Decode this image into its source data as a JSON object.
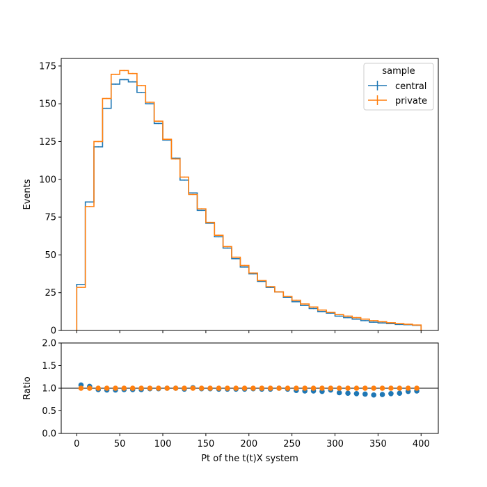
{
  "chart_data": {
    "type": "histogram",
    "x_bin_edges": [
      0,
      10,
      20,
      30,
      40,
      50,
      60,
      70,
      80,
      90,
      100,
      110,
      120,
      130,
      140,
      150,
      160,
      170,
      180,
      190,
      200,
      210,
      220,
      230,
      240,
      250,
      260,
      270,
      280,
      290,
      300,
      310,
      320,
      330,
      340,
      350,
      360,
      370,
      380,
      390,
      400
    ],
    "xlabel": "Pt of the t(t)X system",
    "xlim": [
      -18,
      420
    ],
    "xticks": [
      0,
      50,
      100,
      150,
      200,
      250,
      300,
      350,
      400
    ],
    "main": {
      "ylabel": "Events",
      "ylim": [
        0,
        180
      ],
      "yticks": [
        0,
        25,
        50,
        75,
        100,
        125,
        150,
        175
      ],
      "legend": {
        "title": "sample",
        "placement": "top-right"
      },
      "series": [
        {
          "name": "central",
          "color": "#1f77b4",
          "values": [
            30.5,
            85,
            121.5,
            147,
            163,
            166,
            164.5,
            157.5,
            150,
            137,
            126,
            114,
            99.5,
            91,
            79.5,
            71,
            62,
            54.5,
            47.5,
            42,
            37.5,
            32.5,
            28.5,
            25.5,
            22,
            19,
            16.5,
            14.5,
            12.5,
            11.5,
            9.5,
            8.5,
            7.5,
            6.5,
            5.5,
            5,
            4.5,
            4,
            3.8,
            3.4
          ]
        },
        {
          "name": "private",
          "color": "#ff7f0e",
          "values": [
            28.5,
            82,
            125,
            153.5,
            169.5,
            172,
            170,
            162,
            151,
            138.5,
            126.5,
            113.5,
            101.5,
            90,
            80.5,
            71.5,
            63,
            55.5,
            48.5,
            43,
            38,
            33,
            29,
            25.5,
            22.5,
            20,
            17.5,
            15.5,
            13.5,
            12,
            10.5,
            9.5,
            8.5,
            7.5,
            6.5,
            5.8,
            5.1,
            4.5,
            4.1,
            3.6
          ]
        }
      ]
    },
    "ratio": {
      "ylabel": "Ratio",
      "ylim": [
        0,
        2
      ],
      "yticks": [
        0.0,
        0.5,
        1.0,
        1.5,
        2.0
      ],
      "reference_line": 1.0,
      "series": [
        {
          "name": "central",
          "color": "#1f77b4",
          "values": [
            1.07,
            1.04,
            0.97,
            0.96,
            0.96,
            0.97,
            0.97,
            0.97,
            0.99,
            0.99,
            1.0,
            1.0,
            0.98,
            1.01,
            0.99,
            0.99,
            0.98,
            0.98,
            0.98,
            0.98,
            0.99,
            0.98,
            0.98,
            1.0,
            0.98,
            0.95,
            0.94,
            0.94,
            0.93,
            0.96,
            0.9,
            0.89,
            0.88,
            0.87,
            0.85,
            0.86,
            0.88,
            0.89,
            0.93,
            0.94
          ]
        },
        {
          "name": "private",
          "color": "#ff7f0e",
          "values": [
            1,
            1,
            1,
            1,
            1,
            1,
            1,
            1,
            1,
            1,
            1,
            1,
            1,
            1,
            1,
            1,
            1,
            1,
            1,
            1,
            1,
            1,
            1,
            1,
            1,
            1,
            1,
            1,
            1,
            1,
            1,
            1,
            1,
            1,
            1,
            1,
            1,
            1,
            1,
            1
          ]
        }
      ]
    }
  }
}
